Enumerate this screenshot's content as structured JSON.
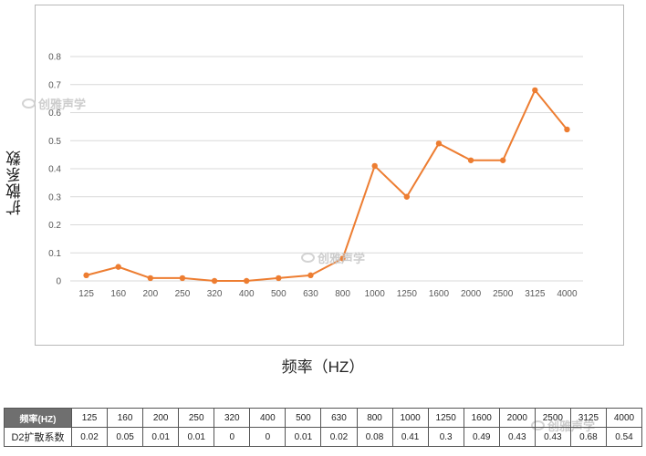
{
  "chart_data": {
    "type": "line",
    "xlabel": "频率（HZ）",
    "ylabel": "扩散系数",
    "categories": [
      "125",
      "160",
      "200",
      "250",
      "320",
      "400",
      "500",
      "630",
      "800",
      "1000",
      "1250",
      "1600",
      "2000",
      "2500",
      "3125",
      "4000"
    ],
    "series": [
      {
        "values": [
          0.02,
          0.05,
          0.01,
          0.01,
          0,
          0,
          0.01,
          0.02,
          0.08,
          0.41,
          0.3,
          0.49,
          0.43,
          0.43,
          0.68,
          0.54
        ]
      }
    ],
    "yticks": [
      "0",
      "0.1",
      "0.2",
      "0.3",
      "0.4",
      "0.5",
      "0.6",
      "0.7",
      "0.8"
    ],
    "ylim": [
      0,
      0.8
    ],
    "grid": true,
    "legend": "none",
    "line_color": "#ed7d31"
  },
  "watermark": {
    "text": "创雅声学"
  },
  "table": {
    "row1_label": "频率(HZ)",
    "row2_label": "D2扩散系数",
    "frequencies": [
      "125",
      "160",
      "200",
      "250",
      "320",
      "400",
      "500",
      "630",
      "800",
      "1000",
      "1250",
      "1600",
      "2000",
      "2500",
      "3125",
      "4000"
    ],
    "coefficients": [
      "0.02",
      "0.05",
      "0.01",
      "0.01",
      "0",
      "0",
      "0.01",
      "0.02",
      "0.08",
      "0.41",
      "0.3",
      "0.49",
      "0.43",
      "0.43",
      "0.68",
      "0.54"
    ]
  }
}
